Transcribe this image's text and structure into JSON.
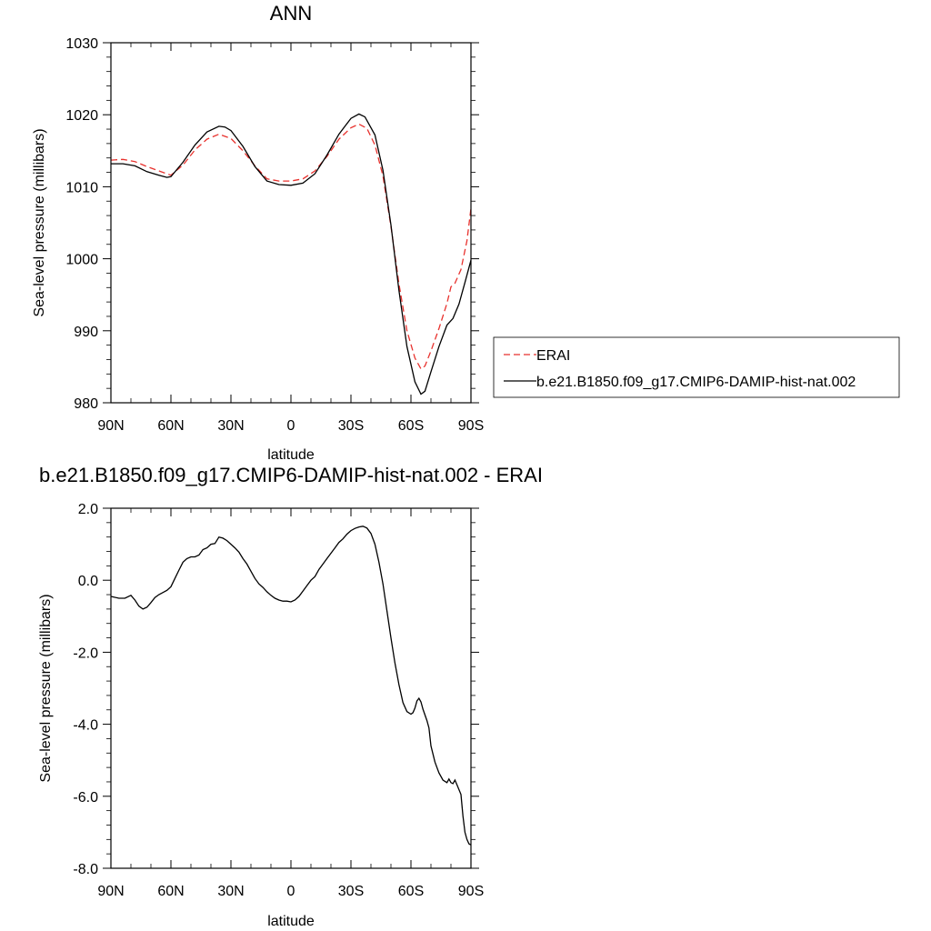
{
  "chart_data": [
    {
      "type": "line",
      "title": "ANN",
      "xlabel": "latitude",
      "ylabel": "Sea-level pressure (millibars)",
      "xlim": [
        90,
        -90
      ],
      "ylim": [
        980,
        1030
      ],
      "xticks": [
        90,
        60,
        30,
        0,
        -30,
        -60,
        -90
      ],
      "xtick_labels": [
        "90N",
        "60N",
        "30N",
        "0",
        "30S",
        "60S",
        "90S"
      ],
      "yticks": [
        980,
        990,
        1000,
        1010,
        1020,
        1030
      ],
      "ytick_labels": [
        "980",
        "990",
        "1000",
        "1010",
        "1020",
        "1030"
      ],
      "legend_position": "right",
      "series": [
        {
          "name": "ERAI",
          "color": "#e8322e",
          "dash": true,
          "points": [
            [
              90,
              1013.7
            ],
            [
              84,
              1013.8
            ],
            [
              78,
              1013.5
            ],
            [
              72,
              1012.8
            ],
            [
              66,
              1012.2
            ],
            [
              60,
              1011.6
            ],
            [
              54,
              1013
            ],
            [
              48,
              1015.1
            ],
            [
              42,
              1016.6
            ],
            [
              36,
              1017.3
            ],
            [
              30,
              1016.7
            ],
            [
              24,
              1015
            ],
            [
              18,
              1012.9
            ],
            [
              12,
              1011.1
            ],
            [
              6,
              1010.8
            ],
            [
              0,
              1010.8
            ],
            [
              -6,
              1011.1
            ],
            [
              -12,
              1012.2
            ],
            [
              -18,
              1014.2
            ],
            [
              -24,
              1016.6
            ],
            [
              -30,
              1018.2
            ],
            [
              -34,
              1018.7
            ],
            [
              -38,
              1018.1
            ],
            [
              -42,
              1015.8
            ],
            [
              -46,
              1011.5
            ],
            [
              -50,
              1004.5
            ],
            [
              -54,
              996.5
            ],
            [
              -58,
              990
            ],
            [
              -62,
              986.2
            ],
            [
              -65,
              984.7
            ],
            [
              -67,
              985.1
            ],
            [
              -70,
              987.2
            ],
            [
              -74,
              990.3
            ],
            [
              -78,
              993.8
            ],
            [
              -80,
              996.1
            ],
            [
              -82,
              996.6
            ],
            [
              -85,
              998.5
            ],
            [
              -88,
              1002.5
            ],
            [
              -90,
              1007
            ]
          ]
        },
        {
          "name": "b.e21.B1850.f09_g17.CMIP6-DAMIP-hist-nat.002",
          "color": "#000000",
          "dash": false,
          "points": [
            [
              90,
              1013.2
            ],
            [
              84,
              1013.2
            ],
            [
              78,
              1012.9
            ],
            [
              72,
              1012.1
            ],
            [
              66,
              1011.6
            ],
            [
              62,
              1011.3
            ],
            [
              60,
              1011.4
            ],
            [
              54,
              1013.4
            ],
            [
              48,
              1015.8
            ],
            [
              42,
              1017.6
            ],
            [
              36,
              1018.4
            ],
            [
              33,
              1018.3
            ],
            [
              30,
              1017.8
            ],
            [
              24,
              1015.6
            ],
            [
              18,
              1012.8
            ],
            [
              12,
              1010.8
            ],
            [
              6,
              1010.3
            ],
            [
              0,
              1010.2
            ],
            [
              -6,
              1010.5
            ],
            [
              -12,
              1011.8
            ],
            [
              -18,
              1014.4
            ],
            [
              -24,
              1017.3
            ],
            [
              -30,
              1019.5
            ],
            [
              -34,
              1020.1
            ],
            [
              -37,
              1019.7
            ],
            [
              -42,
              1017.2
            ],
            [
              -46,
              1012.3
            ],
            [
              -50,
              1004.7
            ],
            [
              -54,
              995.6
            ],
            [
              -58,
              987.8
            ],
            [
              -62,
              982.9
            ],
            [
              -65,
              981.2
            ],
            [
              -67,
              981.6
            ],
            [
              -70,
              984.3
            ],
            [
              -74,
              987.8
            ],
            [
              -78,
              990.8
            ],
            [
              -81,
              991.7
            ],
            [
              -84,
              993.7
            ],
            [
              -87,
              996.7
            ],
            [
              -90,
              999.8
            ]
          ]
        }
      ]
    },
    {
      "type": "line",
      "title": "b.e21.B1850.f09_g17.CMIP6-DAMIP-hist-nat.002 - ERAI",
      "xlabel": "latitude",
      "ylabel": "Sea-level pressure (millibars)",
      "xlim": [
        90,
        -90
      ],
      "ylim": [
        -8,
        2
      ],
      "xticks": [
        90,
        60,
        30,
        0,
        -30,
        -60,
        -90
      ],
      "xtick_labels": [
        "90N",
        "60N",
        "30N",
        "0",
        "30S",
        "60S",
        "90S"
      ],
      "yticks": [
        -8,
        -6,
        -4,
        -2,
        0,
        2
      ],
      "ytick_labels": [
        "-8.0",
        "-6.0",
        "-4.0",
        "-2.0",
        "0.0",
        "2.0"
      ],
      "series": [
        {
          "name": "",
          "color": "#000000",
          "dash": false,
          "points": [
            [
              90,
              -0.45
            ],
            [
              86,
              -0.5
            ],
            [
              83,
              -0.5
            ],
            [
              80,
              -0.42
            ],
            [
              78,
              -0.55
            ],
            [
              76,
              -0.72
            ],
            [
              74,
              -0.8
            ],
            [
              72,
              -0.75
            ],
            [
              70,
              -0.62
            ],
            [
              68,
              -0.48
            ],
            [
              66,
              -0.4
            ],
            [
              64,
              -0.34
            ],
            [
              62,
              -0.28
            ],
            [
              60,
              -0.18
            ],
            [
              58,
              0.05
            ],
            [
              56,
              0.28
            ],
            [
              54,
              0.5
            ],
            [
              52,
              0.6
            ],
            [
              50,
              0.65
            ],
            [
              48,
              0.65
            ],
            [
              46,
              0.7
            ],
            [
              44,
              0.85
            ],
            [
              42,
              0.9
            ],
            [
              40,
              1.0
            ],
            [
              38,
              1.02
            ],
            [
              36,
              1.2
            ],
            [
              34,
              1.17
            ],
            [
              32,
              1.1
            ],
            [
              30,
              1.0
            ],
            [
              28,
              0.9
            ],
            [
              26,
              0.78
            ],
            [
              24,
              0.6
            ],
            [
              22,
              0.45
            ],
            [
              20,
              0.25
            ],
            [
              18,
              0.05
            ],
            [
              16,
              -0.1
            ],
            [
              14,
              -0.2
            ],
            [
              12,
              -0.32
            ],
            [
              10,
              -0.42
            ],
            [
              8,
              -0.5
            ],
            [
              6,
              -0.55
            ],
            [
              4,
              -0.58
            ],
            [
              2,
              -0.58
            ],
            [
              0,
              -0.6
            ],
            [
              -2,
              -0.55
            ],
            [
              -4,
              -0.45
            ],
            [
              -6,
              -0.3
            ],
            [
              -8,
              -0.15
            ],
            [
              -10,
              0.0
            ],
            [
              -12,
              0.1
            ],
            [
              -14,
              0.3
            ],
            [
              -16,
              0.45
            ],
            [
              -18,
              0.6
            ],
            [
              -20,
              0.75
            ],
            [
              -22,
              0.9
            ],
            [
              -24,
              1.05
            ],
            [
              -26,
              1.15
            ],
            [
              -28,
              1.28
            ],
            [
              -30,
              1.38
            ],
            [
              -32,
              1.44
            ],
            [
              -34,
              1.48
            ],
            [
              -36,
              1.5
            ],
            [
              -38,
              1.45
            ],
            [
              -40,
              1.3
            ],
            [
              -42,
              1.0
            ],
            [
              -44,
              0.5
            ],
            [
              -46,
              -0.1
            ],
            [
              -48,
              -0.85
            ],
            [
              -50,
              -1.6
            ],
            [
              -52,
              -2.3
            ],
            [
              -54,
              -2.9
            ],
            [
              -56,
              -3.4
            ],
            [
              -58,
              -3.65
            ],
            [
              -60,
              -3.72
            ],
            [
              -61,
              -3.68
            ],
            [
              -62,
              -3.55
            ],
            [
              -63,
              -3.35
            ],
            [
              -64,
              -3.28
            ],
            [
              -65,
              -3.38
            ],
            [
              -66,
              -3.58
            ],
            [
              -68,
              -3.9
            ],
            [
              -69,
              -4.1
            ],
            [
              -70,
              -4.6
            ],
            [
              -72,
              -5.05
            ],
            [
              -74,
              -5.35
            ],
            [
              -76,
              -5.55
            ],
            [
              -78,
              -5.62
            ],
            [
              -79,
              -5.52
            ],
            [
              -80,
              -5.62
            ],
            [
              -81,
              -5.65
            ],
            [
              -82,
              -5.55
            ],
            [
              -83,
              -5.68
            ],
            [
              -85,
              -5.95
            ],
            [
              -86,
              -6.55
            ],
            [
              -87,
              -7.0
            ],
            [
              -88,
              -7.2
            ],
            [
              -89,
              -7.32
            ],
            [
              -90,
              -7.35
            ]
          ]
        }
      ]
    }
  ]
}
